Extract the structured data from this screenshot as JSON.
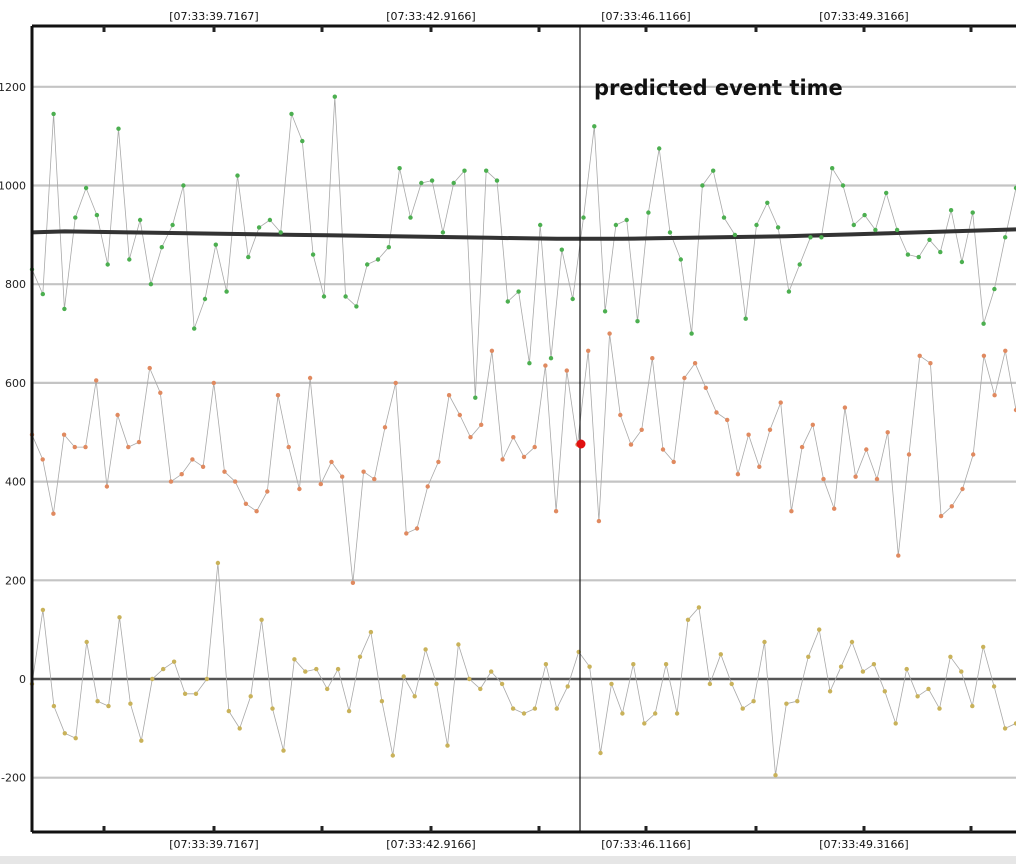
{
  "chart_data": {
    "type": "line",
    "x_ticks": [
      "[07:33:39.7167]",
      "[07:33:42.9166]",
      "[07:33:46.1166]",
      "[07:33:49.3166]"
    ],
    "y_ticks": [
      "1200",
      "1000",
      "800",
      "600",
      "400",
      "200",
      "0",
      "-200"
    ],
    "ylim": [
      -310,
      1320
    ],
    "grid": true,
    "annotation": {
      "text": "predicted event time",
      "marker_time": "07:33:46.1166",
      "marker_value": 478
    },
    "series": [
      {
        "color": "#4caf50",
        "values": [
          830,
          780,
          1145,
          750,
          935,
          995,
          940,
          840,
          1115,
          850,
          930,
          800,
          875,
          920,
          1000,
          710,
          770,
          880,
          785,
          1020,
          855,
          915,
          930,
          905,
          1145,
          1090,
          860,
          775,
          1180,
          775,
          755,
          840,
          850,
          875,
          1035,
          935,
          1005,
          1010,
          905,
          1005,
          1030,
          570,
          1030,
          1010,
          765,
          785,
          640,
          920,
          650,
          870,
          770,
          935,
          1120,
          745,
          920,
          930,
          725,
          945,
          1075,
          905,
          850,
          700,
          1000,
          1030,
          935,
          900,
          730,
          920,
          965,
          915,
          785,
          840,
          895,
          895,
          1035,
          1000,
          920,
          940,
          910,
          985,
          910,
          860,
          855,
          890,
          865,
          950,
          845,
          945,
          720,
          790,
          895,
          995
        ]
      },
      {
        "color": "#e08a60",
        "values": [
          495,
          445,
          335,
          495,
          470,
          470,
          605,
          390,
          535,
          470,
          480,
          630,
          580,
          400,
          415,
          445,
          430,
          600,
          420,
          400,
          355,
          340,
          380,
          575,
          470,
          385,
          610,
          395,
          440,
          410,
          195,
          420,
          405,
          510,
          600,
          295,
          305,
          390,
          440,
          575,
          535,
          490,
          515,
          665,
          445,
          490,
          450,
          470,
          635,
          340,
          625,
          475,
          665,
          320,
          700,
          535,
          475,
          505,
          650,
          465,
          440,
          610,
          640,
          590,
          540,
          525,
          415,
          495,
          430,
          505,
          560,
          340,
          470,
          515,
          405,
          345,
          550,
          410,
          465,
          405,
          500,
          250,
          455,
          655,
          640,
          330,
          350,
          385,
          455,
          655,
          575,
          665,
          545
        ]
      },
      {
        "color": "#c9b25a",
        "values": [
          -10,
          140,
          -55,
          -110,
          -120,
          75,
          -45,
          -55,
          125,
          -50,
          -125,
          0,
          20,
          35,
          -30,
          -30,
          0,
          235,
          -65,
          -100,
          -35,
          120,
          -60,
          -145,
          40,
          15,
          20,
          -20,
          20,
          -65,
          45,
          95,
          -45,
          -155,
          5,
          -35,
          60,
          -10,
          -135,
          70,
          0,
          -20,
          15,
          -10,
          -60,
          -70,
          -60,
          30,
          -60,
          -15,
          55,
          25,
          -150,
          -10,
          -70,
          30,
          -90,
          -70,
          30,
          -70,
          120,
          145,
          -10,
          50,
          -10,
          -60,
          -45,
          75,
          -195,
          -50,
          -45,
          45,
          100,
          -25,
          25,
          75,
          15,
          30,
          -25,
          -90,
          20,
          -35,
          -20,
          -60,
          45,
          15,
          -55,
          65,
          -15,
          -100,
          -90
        ]
      },
      {
        "color": "#333333",
        "values": [
          905,
          907,
          906,
          905,
          904,
          903,
          902,
          901,
          900,
          899,
          898,
          897,
          896,
          895,
          894,
          893,
          892,
          892,
          892,
          893,
          894,
          895,
          896,
          897,
          899,
          901,
          903,
          905,
          907,
          909,
          911
        ]
      }
    ]
  }
}
